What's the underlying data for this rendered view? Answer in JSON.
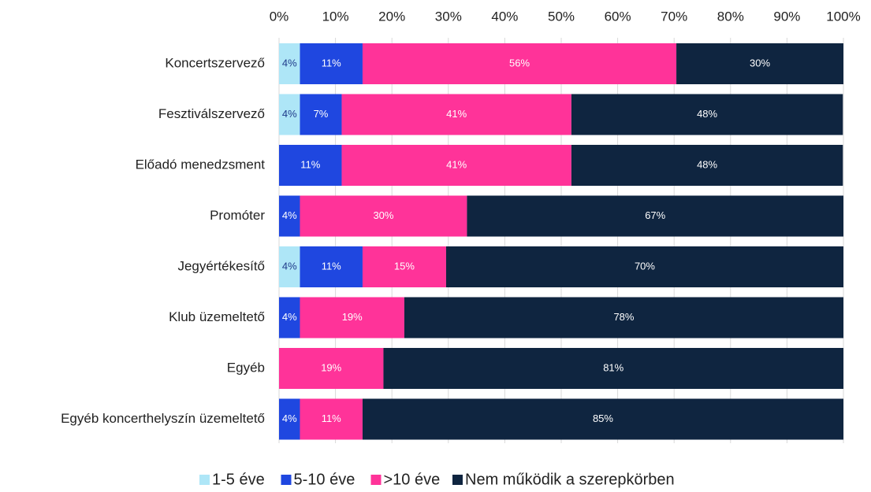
{
  "chart_data": {
    "type": "stacked-bar-horizontal",
    "categories": [
      "Koncertszervező",
      "Fesztiválszervező",
      "Előadó menedzsment",
      "Promóter",
      "Jegyértékesítő",
      "Klub üzemeltető",
      "Egyéb",
      "Egyéb koncerthelyszín üzemeltető"
    ],
    "series": [
      {
        "name": "1-5 éve",
        "color": "#aee6f7",
        "values": [
          3.7,
          3.7,
          0,
          0,
          3.7,
          0,
          0,
          0
        ],
        "value_labels": [
          "4%",
          "4%",
          null,
          null,
          "4%",
          null,
          null,
          null
        ]
      },
      {
        "name": "5-10 éve",
        "color": "#1f47e0",
        "values": [
          11.1,
          7.4,
          11.1,
          3.7,
          11.1,
          3.7,
          0,
          3.7
        ],
        "value_labels": [
          "11%",
          "7%",
          "11%",
          "4%",
          "11%",
          "4%",
          null,
          "4%"
        ]
      },
      {
        "name": ">10 éve",
        "color": "#ff3399",
        "values": [
          55.6,
          40.7,
          40.7,
          29.6,
          14.8,
          18.5,
          18.5,
          11.1
        ],
        "value_labels": [
          "56%",
          "41%",
          "41%",
          "30%",
          "15%",
          "19%",
          "19%",
          "11%"
        ]
      },
      {
        "name": "Nem működik a szerepkörben",
        "color": "#0f2540",
        "values": [
          29.6,
          48.1,
          48.1,
          66.7,
          70.4,
          77.8,
          81.5,
          85.2
        ],
        "value_labels": [
          "30%",
          "48%",
          "48%",
          "67%",
          "70%",
          "78%",
          "81%",
          "85%"
        ]
      }
    ],
    "xlim": [
      0,
      100
    ],
    "xticks": [
      {
        "value": 0,
        "label": "0%"
      },
      {
        "value": 10,
        "label": "10%"
      },
      {
        "value": 20,
        "label": "20%"
      },
      {
        "value": 30,
        "label": "30%"
      },
      {
        "value": 40,
        "label": "40%"
      },
      {
        "value": 50,
        "label": "50%"
      },
      {
        "value": 60,
        "label": "60%"
      },
      {
        "value": 70,
        "label": "70%"
      },
      {
        "value": 80,
        "label": "80%"
      },
      {
        "value": 90,
        "label": "90%"
      },
      {
        "value": 100,
        "label": "100%"
      }
    ],
    "grid": true,
    "legend": "bottom"
  }
}
